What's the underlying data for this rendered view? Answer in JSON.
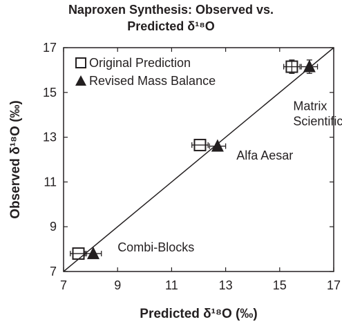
{
  "chart_data": {
    "type": "scatter",
    "title": "Naproxen Synthesis: Observed vs.",
    "title_line2": "Predicted δ¹⁸O",
    "xlabel": "Predicted δ¹⁸O (‰)",
    "ylabel": "Observed δ¹⁸O (‰)",
    "xlim": [
      7,
      17
    ],
    "ylim": [
      7,
      17
    ],
    "xticks": [
      7,
      9,
      11,
      13,
      15,
      17
    ],
    "yticks": [
      7,
      9,
      11,
      13,
      15,
      17
    ],
    "grid": false,
    "legend_position": "top-left",
    "reference_line": {
      "x": [
        7,
        17
      ],
      "y": [
        7,
        17
      ]
    },
    "series": [
      {
        "name": "Original Prediction",
        "marker": "open-square",
        "color": "#231f20",
        "points": [
          {
            "x": 7.55,
            "y": 7.8,
            "xerr": 0.3
          },
          {
            "x": 12.05,
            "y": 12.65,
            "xerr": 0.3
          },
          {
            "x": 15.45,
            "y": 16.15,
            "xerr": 0.3,
            "yerr": 0.3
          }
        ]
      },
      {
        "name": "Revised Mass Balance",
        "marker": "filled-triangle",
        "color": "#231f20",
        "points": [
          {
            "x": 8.1,
            "y": 7.8,
            "xerr": 0.3
          },
          {
            "x": 12.7,
            "y": 12.6,
            "xerr": 0.3
          },
          {
            "x": 16.1,
            "y": 16.15,
            "xerr": 0.3,
            "yerr": 0.3
          }
        ]
      }
    ],
    "annotations": [
      {
        "lines": [
          "Matrix",
          "Scientific"
        ],
        "x": 15.5,
        "y": 14.2
      },
      {
        "lines": [
          "Alfa Aesar"
        ],
        "x": 13.4,
        "y": 12.0
      },
      {
        "lines": [
          "Combi-Blocks"
        ],
        "x": 9.0,
        "y": 7.9
      }
    ]
  }
}
